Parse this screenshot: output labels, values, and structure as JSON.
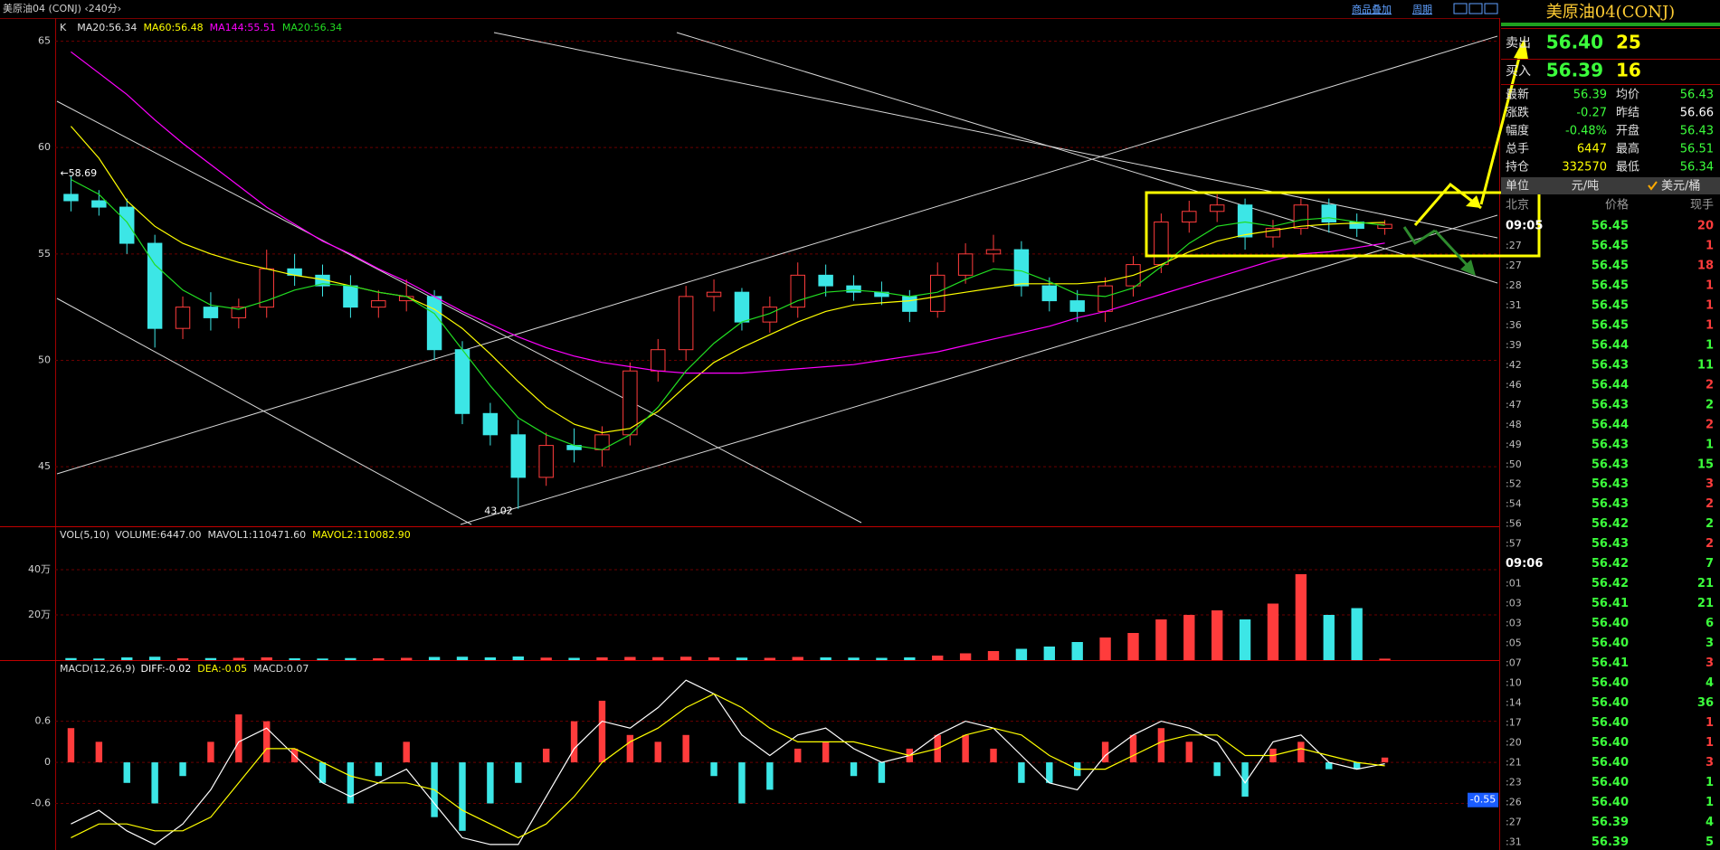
{
  "window": {
    "title": "美原油04 (CONJ) ‹240分›",
    "links": [
      "商品叠加",
      "周期"
    ]
  },
  "chart_data": [
    {
      "type": "candlestick",
      "title": "K",
      "open": [
        57.8,
        57.5,
        57.2,
        55.5,
        51.5,
        52.5,
        52.0,
        52.5,
        54.3,
        54.0,
        53.5,
        52.5,
        52.8,
        53.0,
        50.5,
        47.5,
        46.5,
        44.5,
        46.0,
        45.8,
        46.5,
        49.5,
        50.5,
        53.0,
        53.2,
        51.8,
        52.5,
        54.0,
        53.5,
        53.2,
        53.0,
        52.3,
        54.0,
        55.0,
        55.2,
        53.5,
        52.8,
        52.3,
        53.5,
        54.5,
        56.5,
        57.0,
        57.3,
        55.8,
        56.2,
        57.3,
        56.5,
        56.2
      ],
      "high": [
        58.69,
        58.0,
        57.6,
        55.9,
        53.0,
        53.2,
        52.9,
        55.2,
        55.0,
        54.5,
        54.0,
        53.3,
        53.8,
        53.3,
        50.9,
        48.0,
        47.2,
        46.6,
        46.8,
        46.9,
        49.9,
        51.0,
        53.5,
        53.8,
        53.4,
        53.0,
        54.6,
        54.5,
        54.0,
        53.7,
        53.3,
        54.6,
        55.5,
        55.9,
        55.6,
        53.9,
        53.3,
        53.9,
        54.9,
        56.9,
        57.5,
        57.8,
        57.6,
        56.6,
        57.6,
        57.6,
        56.9,
        56.6
      ],
      "low": [
        57.0,
        56.8,
        55.0,
        50.6,
        51.0,
        51.4,
        51.5,
        52.0,
        53.5,
        53.0,
        52.0,
        52.0,
        52.3,
        50.0,
        47.0,
        46.0,
        43.02,
        44.1,
        45.2,
        45.0,
        46.0,
        49.0,
        50.0,
        52.3,
        51.4,
        51.3,
        52.0,
        53.0,
        52.8,
        52.6,
        51.8,
        52.0,
        53.6,
        54.6,
        53.0,
        52.3,
        51.8,
        51.8,
        53.0,
        54.1,
        56.0,
        56.5,
        55.2,
        55.3,
        55.9,
        56.0,
        55.8,
        55.9
      ],
      "close": [
        57.5,
        57.2,
        55.5,
        51.5,
        52.5,
        52.0,
        52.5,
        54.3,
        54.0,
        53.5,
        52.5,
        52.8,
        53.0,
        50.5,
        47.5,
        46.5,
        44.5,
        46.0,
        45.8,
        46.5,
        49.5,
        50.5,
        53.0,
        53.2,
        51.8,
        52.5,
        54.0,
        53.5,
        53.2,
        53.0,
        52.3,
        54.0,
        55.0,
        55.2,
        53.5,
        52.8,
        52.3,
        53.5,
        54.5,
        56.5,
        57.0,
        57.3,
        55.8,
        56.2,
        57.3,
        56.5,
        56.2,
        56.39
      ],
      "up_color": "#ff3c3c",
      "down_color": "#3ce6e6",
      "legend": [
        {
          "name": "MA20:56.34",
          "color": "#e0e0e0"
        },
        {
          "name": "MA60:56.48",
          "color": "#ffff00",
          "values": [
            61,
            59.5,
            57.5,
            56.3,
            55.5,
            55.0,
            54.6,
            54.3,
            54.0,
            53.8,
            53.5,
            53.2,
            53.0,
            52.4,
            51.5,
            50.3,
            49.0,
            47.8,
            47.0,
            46.6,
            46.8,
            47.6,
            48.8,
            49.9,
            50.6,
            51.2,
            51.8,
            52.3,
            52.6,
            52.7,
            52.8,
            53.0,
            53.2,
            53.4,
            53.6,
            53.6,
            53.6,
            53.7,
            54.0,
            54.5,
            55.1,
            55.6,
            55.9,
            56.1,
            56.3,
            56.4,
            56.45,
            56.48
          ]
        },
        {
          "name": "MA144:55.51",
          "color": "#ff00ff",
          "values": [
            64.5,
            63.5,
            62.5,
            61.3,
            60.2,
            59.2,
            58.2,
            57.2,
            56.4,
            55.6,
            55.0,
            54.3,
            53.7,
            53.0,
            52.3,
            51.7,
            51.1,
            50.6,
            50.2,
            49.9,
            49.7,
            49.5,
            49.4,
            49.4,
            49.4,
            49.5,
            49.6,
            49.7,
            49.8,
            50.0,
            50.2,
            50.4,
            50.7,
            51.0,
            51.3,
            51.6,
            52.0,
            52.3,
            52.7,
            53.1,
            53.5,
            53.9,
            54.3,
            54.7,
            55.0,
            55.1,
            55.3,
            55.51
          ]
        },
        {
          "name": "MA20:56.34",
          "color": "#22dd22",
          "values": [
            58.5,
            57.8,
            56.5,
            54.5,
            53.3,
            52.6,
            52.4,
            52.8,
            53.3,
            53.6,
            53.5,
            53.2,
            53.0,
            52.2,
            50.5,
            48.8,
            47.3,
            46.5,
            46.0,
            45.8,
            46.5,
            47.8,
            49.5,
            50.8,
            51.8,
            52.2,
            52.8,
            53.2,
            53.3,
            53.2,
            53.0,
            53.2,
            53.8,
            54.3,
            54.2,
            53.7,
            53.1,
            53.0,
            53.4,
            54.4,
            55.5,
            56.3,
            56.5,
            56.3,
            56.6,
            56.7,
            56.5,
            56.34
          ]
        }
      ],
      "ylim": [
        42.2,
        66.0
      ],
      "yticks": [
        45,
        50,
        55,
        60,
        65
      ],
      "grid": true,
      "annotations": [
        {
          "label": "←58.69",
          "value": 58.69
        },
        {
          "label": "43.02",
          "value": 43.02
        }
      ]
    },
    {
      "type": "bar",
      "title": "VOL(5,10)",
      "legend": [
        {
          "name": "VOLUME:6447.00",
          "color": "#dddddd"
        },
        {
          "name": "MAVOL1:110471.60",
          "color": "#dddddd"
        },
        {
          "name": "MAVOL2:110082.90",
          "color": "#ffff00"
        }
      ],
      "values": [
        9000,
        7000,
        12000,
        15000,
        8000,
        9000,
        10000,
        12000,
        8000,
        7000,
        9000,
        8000,
        10000,
        14000,
        15000,
        12000,
        16000,
        11000,
        10000,
        12000,
        14000,
        13000,
        15000,
        12000,
        11000,
        10000,
        14000,
        12000,
        11000,
        10000,
        12000,
        20000,
        30000,
        40000,
        50000,
        60000,
        80000,
        100000,
        120000,
        180000,
        200000,
        220000,
        180000,
        250000,
        380000,
        200000,
        230000,
        6447
      ],
      "ylim": [
        0,
        588000
      ],
      "yticks": [
        {
          "value": 200000,
          "label": "20万"
        },
        {
          "value": 400000,
          "label": "40万"
        }
      ],
      "grid": true
    },
    {
      "type": "macd",
      "title": "MACD(12,26,9)",
      "values": [
        0.5,
        0.3,
        -0.3,
        -0.6,
        -0.2,
        0.3,
        0.7,
        0.6,
        0.2,
        -0.3,
        -0.6,
        -0.2,
        0.3,
        -0.8,
        -1.0,
        -0.6,
        -0.3,
        0.2,
        0.6,
        0.9,
        0.4,
        0.3,
        0.4,
        -0.2,
        -0.6,
        -0.4,
        0.2,
        0.3,
        -0.2,
        -0.3,
        0.2,
        0.4,
        0.4,
        0.2,
        -0.3,
        -0.3,
        -0.2,
        0.3,
        0.4,
        0.5,
        0.3,
        -0.2,
        -0.5,
        0.2,
        0.3,
        -0.1,
        -0.1,
        0.07
      ],
      "up_color": "#ff3c3c",
      "down_color": "#3ce6e6",
      "legend": [
        {
          "name": "DIFF:-0.02",
          "color": "#ffffff",
          "values": [
            -0.9,
            -0.7,
            -1.0,
            -1.2,
            -0.9,
            -0.4,
            0.3,
            0.5,
            0.1,
            -0.3,
            -0.5,
            -0.3,
            -0.1,
            -0.6,
            -1.1,
            -1.2,
            -1.2,
            -0.5,
            0.2,
            0.6,
            0.5,
            0.8,
            1.2,
            1.0,
            0.4,
            0.1,
            0.4,
            0.5,
            0.2,
            0.0,
            0.1,
            0.4,
            0.6,
            0.5,
            0.1,
            -0.3,
            -0.4,
            0.1,
            0.4,
            0.6,
            0.5,
            0.3,
            -0.3,
            0.3,
            0.4,
            0.0,
            -0.1,
            -0.02
          ]
        },
        {
          "name": "DEA:-0.05",
          "color": "#ffff00",
          "values": [
            -1.1,
            -0.9,
            -0.9,
            -1.0,
            -1.0,
            -0.8,
            -0.3,
            0.2,
            0.2,
            0.0,
            -0.2,
            -0.3,
            -0.3,
            -0.4,
            -0.7,
            -0.9,
            -1.1,
            -0.9,
            -0.5,
            0.0,
            0.3,
            0.5,
            0.8,
            1.0,
            0.8,
            0.5,
            0.3,
            0.3,
            0.3,
            0.2,
            0.1,
            0.2,
            0.4,
            0.5,
            0.4,
            0.1,
            -0.1,
            -0.1,
            0.1,
            0.3,
            0.4,
            0.4,
            0.1,
            0.1,
            0.2,
            0.1,
            0.0,
            -0.05
          ]
        },
        {
          "name": "MACD:0.07",
          "color": "#dddddd"
        }
      ],
      "ylim": [
        -1.28,
        1.48
      ],
      "yticks": [
        -0.6,
        0,
        0.6
      ],
      "grid": true,
      "marker": -0.55
    }
  ],
  "quote": {
    "title": "美原油04(CONJ)",
    "book": [
      {
        "label": "卖出",
        "price": "56.40",
        "size": "25"
      },
      {
        "label": "买入",
        "price": "56.39",
        "size": "16"
      }
    ],
    "stats": [
      {
        "label": "最新",
        "value": "56.39",
        "color": "#3cff3c",
        "label2": "均价",
        "value2": "56.43",
        "color2": "#3cff3c"
      },
      {
        "label": "涨跌",
        "value": "-0.27",
        "color": "#3cff3c",
        "label2": "昨结",
        "value2": "56.66",
        "color2": "#ffffff"
      },
      {
        "label": "幅度",
        "value": "-0.48%",
        "color": "#3cff3c",
        "label2": "开盘",
        "value2": "56.43",
        "color2": "#3cff3c"
      },
      {
        "label": "总手",
        "value": "6447",
        "color": "#ffff00",
        "label2": "最高",
        "value2": "56.51",
        "color2": "#3cff3c"
      },
      {
        "label": "持仓",
        "value": "332570",
        "color": "#ffff00",
        "label2": "最低",
        "value2": "56.34",
        "color2": "#3cff3c"
      }
    ],
    "unit": {
      "label": "单位",
      "options": [
        "元/吨",
        "美元/桶"
      ]
    }
  },
  "ticks": {
    "columns": [
      "北京",
      "价格",
      "现手"
    ],
    "rows": [
      {
        "time": "09:05",
        "price": "56.45",
        "volume": "20",
        "color": "#ff3c3c"
      },
      {
        "time": ":27",
        "price": "56.45",
        "volume": "1",
        "color": "#ff3c3c"
      },
      {
        "time": ":27",
        "price": "56.45",
        "volume": "18",
        "color": "#ff3c3c"
      },
      {
        "time": ":28",
        "price": "56.45",
        "volume": "1",
        "color": "#ff3c3c"
      },
      {
        "time": ":31",
        "price": "56.45",
        "volume": "1",
        "color": "#ff3c3c"
      },
      {
        "time": ":36",
        "price": "56.45",
        "volume": "1",
        "color": "#ff3c3c"
      },
      {
        "time": ":39",
        "price": "56.44",
        "volume": "1",
        "color": "#3cff3c"
      },
      {
        "time": ":42",
        "price": "56.43",
        "volume": "11",
        "color": "#3cff3c"
      },
      {
        "time": ":46",
        "price": "56.44",
        "volume": "2",
        "color": "#ff3c3c"
      },
      {
        "time": ":47",
        "price": "56.43",
        "volume": "2",
        "color": "#3cff3c"
      },
      {
        "time": ":48",
        "price": "56.44",
        "volume": "2",
        "color": "#ff3c3c"
      },
      {
        "time": ":49",
        "price": "56.43",
        "volume": "1",
        "color": "#3cff3c"
      },
      {
        "time": ":50",
        "price": "56.43",
        "volume": "15",
        "color": "#3cff3c"
      },
      {
        "time": ":52",
        "price": "56.43",
        "volume": "3",
        "color": "#ff3c3c"
      },
      {
        "time": ":54",
        "price": "56.43",
        "volume": "2",
        "color": "#ff3c3c"
      },
      {
        "time": ":56",
        "price": "56.42",
        "volume": "2",
        "color": "#3cff3c"
      },
      {
        "time": ":57",
        "price": "56.43",
        "volume": "2",
        "color": "#ff3c3c"
      },
      {
        "time": "09:06",
        "price": "56.42",
        "volume": "7",
        "color": "#3cff3c"
      },
      {
        "time": ":01",
        "price": "56.42",
        "volume": "21",
        "color": "#3cff3c"
      },
      {
        "time": ":03",
        "price": "56.41",
        "volume": "21",
        "color": "#3cff3c"
      },
      {
        "time": ":03",
        "price": "56.40",
        "volume": "6",
        "color": "#3cff3c"
      },
      {
        "time": ":05",
        "price": "56.40",
        "volume": "3",
        "color": "#3cff3c"
      },
      {
        "time": ":07",
        "price": "56.41",
        "volume": "3",
        "color": "#ff3c3c"
      },
      {
        "time": ":10",
        "price": "56.40",
        "volume": "4",
        "color": "#3cff3c"
      },
      {
        "time": ":14",
        "price": "56.40",
        "volume": "36",
        "color": "#3cff3c"
      },
      {
        "time": ":17",
        "price": "56.40",
        "volume": "1",
        "color": "#ff3c3c"
      },
      {
        "time": ":20",
        "price": "56.40",
        "volume": "1",
        "color": "#ff3c3c"
      },
      {
        "time": ":21",
        "price": "56.40",
        "volume": "3",
        "color": "#ff3c3c"
      },
      {
        "time": ":23",
        "price": "56.40",
        "volume": "1",
        "color": "#3cff3c"
      },
      {
        "time": ":26",
        "price": "56.40",
        "volume": "1",
        "color": "#3cff3c"
      },
      {
        "time": ":27",
        "price": "56.39",
        "volume": "4",
        "color": "#3cff3c"
      },
      {
        "time": ":31",
        "price": "56.39",
        "volume": "5",
        "color": "#3cff3c"
      }
    ]
  }
}
